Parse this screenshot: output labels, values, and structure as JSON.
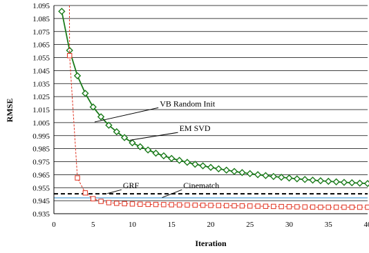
{
  "chart_data": {
    "type": "line",
    "xlabel": "Iteration",
    "ylabel": "RMSE",
    "xlim": [
      0,
      40
    ],
    "ylim": [
      0.935,
      1.095
    ],
    "x_ticks": [
      "0",
      "5",
      "10",
      "15",
      "20",
      "25",
      "30",
      "35",
      "40"
    ],
    "y_ticks": [
      "1.095",
      "1.085",
      "1.075",
      "1.065",
      "1.055",
      "1.045",
      "1.035",
      "1.025",
      "1.015",
      "1.005",
      "0.995",
      "0.985",
      "0.975",
      "0.965",
      "0.955",
      "0.945",
      "0.935"
    ],
    "grid": "horizontal",
    "series": [
      {
        "marker": "diamond",
        "color": "#1a7a1a",
        "line": "solid",
        "x": [
          1,
          2,
          3,
          4,
          5,
          6,
          7,
          8,
          9,
          10,
          11,
          12,
          13,
          14,
          15,
          16,
          17,
          18,
          19,
          20,
          21,
          22,
          23,
          24,
          25,
          26,
          27,
          28,
          29,
          30,
          31,
          32,
          33,
          34,
          35,
          36,
          37,
          38,
          39,
          40
        ],
        "values": [
          1.0905,
          1.0605,
          1.041,
          1.0275,
          1.017,
          1.0095,
          1.003,
          0.998,
          0.9935,
          0.9895,
          0.9865,
          0.984,
          0.9815,
          0.9795,
          0.9775,
          0.976,
          0.9745,
          0.973,
          0.9718,
          0.9706,
          0.9695,
          0.9685,
          0.9675,
          0.9666,
          0.9658,
          0.965,
          0.9643,
          0.9636,
          0.963,
          0.9624,
          0.9618,
          0.9613,
          0.9608,
          0.9603,
          0.9599,
          0.9595,
          0.9591,
          0.9588,
          0.9585,
          0.9582
        ]
      },
      {
        "marker": "square",
        "color": "#e0301e",
        "line": "dashed",
        "x": [
          2,
          3,
          4,
          5,
          6,
          7,
          8,
          9,
          10,
          11,
          12,
          13,
          14,
          15,
          16,
          17,
          18,
          19,
          20,
          21,
          22,
          23,
          24,
          25,
          26,
          27,
          28,
          29,
          30,
          31,
          32,
          33,
          34,
          35,
          36,
          37,
          38,
          39,
          40
        ],
        "values": [
          1.0565,
          0.9625,
          0.951,
          0.9465,
          0.9445,
          0.9435,
          0.943,
          0.9427,
          0.9425,
          0.9423,
          0.9422,
          0.9421,
          0.942,
          0.9419,
          0.9418,
          0.9417,
          0.9416,
          0.9415,
          0.9414,
          0.9413,
          0.9412,
          0.9411,
          0.941,
          0.9409,
          0.9408,
          0.9407,
          0.9406,
          0.9405,
          0.9404,
          0.9403,
          0.9402,
          0.9401,
          0.94,
          0.94,
          0.94,
          0.94,
          0.94,
          0.94,
          0.94
        ],
        "lead_in": {
          "x": [
            1.98,
            2
          ],
          "values": [
            1.095,
            1.0565
          ]
        }
      }
    ],
    "reference_lines": [
      {
        "value": 0.9503,
        "color": "#000000",
        "style": "dashed"
      },
      {
        "value": 0.9472,
        "color": "#4f9fd8",
        "style": "solid"
      }
    ],
    "annotations": [
      {
        "text": "VB Random Init",
        "x": 13.5,
        "y": 1.0175,
        "arrow_to": [
          5.2,
          1.0055
        ]
      },
      {
        "text": "EM SVD",
        "x": 16,
        "y": 0.9985,
        "arrow_to": [
          9.7,
          0.9915
        ]
      },
      {
        "text": "GRF",
        "x": 8.8,
        "y": 0.9545,
        "arrow_to": [
          6.8,
          0.9505
        ]
      },
      {
        "text": "Cinematch",
        "x": 16.5,
        "y": 0.9545,
        "arrow_to": [
          13.8,
          0.9474
        ]
      }
    ]
  }
}
